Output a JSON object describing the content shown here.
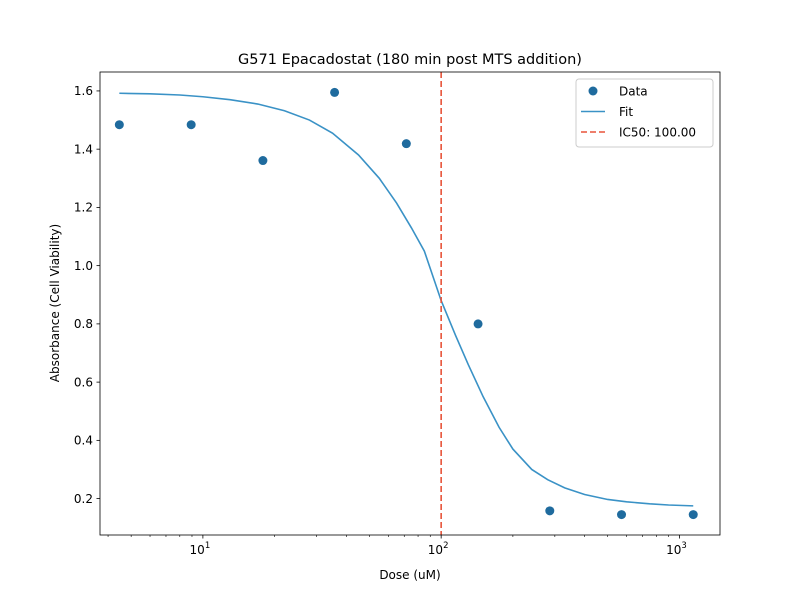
{
  "chart_data": {
    "type": "scatter",
    "title": "G571 Epacadostat (180 min post MTS addition)",
    "xlabel": "Dose (uM)",
    "ylabel": "Absorbance (Cell Viability)",
    "xscale": "log",
    "xlim": [
      3.7,
      1480
    ],
    "ylim": [
      0.075,
      1.665
    ],
    "xticks": [
      {
        "value": 10,
        "base": "10",
        "exp": "1"
      },
      {
        "value": 100,
        "base": "10",
        "exp": "2"
      },
      {
        "value": 1000,
        "base": "10",
        "exp": "3"
      }
    ],
    "yticks": [
      "0.2",
      "0.4",
      "0.6",
      "0.8",
      "1.0",
      "1.2",
      "1.4",
      "1.6"
    ],
    "grid": false,
    "legend_position": "top-right",
    "series": [
      {
        "name": "Data",
        "kind": "scatter",
        "color": "#1f6b9e",
        "x": [
          4.46,
          8.93,
          17.86,
          35.71,
          71.43,
          142.86,
          285.71,
          571.43,
          1142.86
        ],
        "y": [
          1.484,
          1.484,
          1.361,
          1.595,
          1.419,
          0.8,
          0.158,
          0.145,
          0.145
        ]
      },
      {
        "name": "Fit",
        "kind": "line",
        "color": "#3a92c6",
        "x": [
          4.46,
          6,
          8,
          10,
          13,
          17,
          22,
          28,
          35,
          45,
          55,
          65,
          75,
          85,
          100,
          115,
          130,
          150,
          175,
          200,
          240,
          280,
          330,
          400,
          500,
          600,
          750,
          900,
          1142.86
        ],
        "y": [
          1.592,
          1.59,
          1.586,
          1.58,
          1.57,
          1.555,
          1.532,
          1.5,
          1.455,
          1.38,
          1.3,
          1.215,
          1.13,
          1.05,
          0.88,
          0.76,
          0.66,
          0.55,
          0.445,
          0.37,
          0.3,
          0.265,
          0.237,
          0.214,
          0.197,
          0.189,
          0.182,
          0.178,
          0.175
        ]
      }
    ],
    "vline": {
      "name": "IC50: 100.00",
      "x": 100,
      "color": "#e8543a",
      "style": "dashed"
    }
  }
}
